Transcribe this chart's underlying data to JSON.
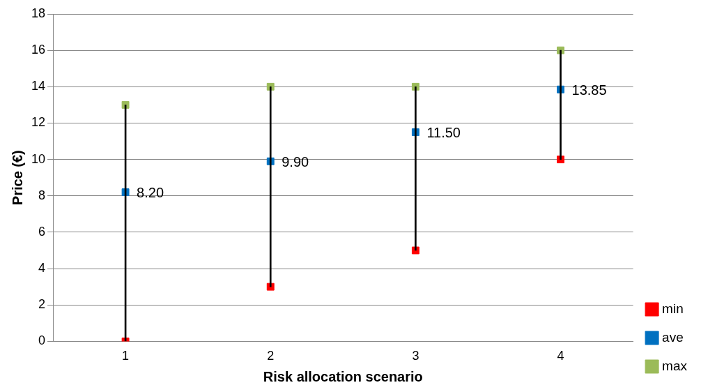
{
  "chart_data": {
    "type": "scatter",
    "xlabel": "Risk allocation scenario",
    "ylabel": "Price (€)",
    "categories": [
      "1",
      "2",
      "3",
      "4"
    ],
    "series": [
      {
        "type": "bar",
        "color": "#000000",
        "base": [
          0,
          3,
          5,
          10
        ],
        "values": [
          13,
          11,
          9,
          6
        ]
      },
      {
        "name": "min",
        "color": "#ff0000",
        "values": [
          0,
          3,
          5,
          10
        ]
      },
      {
        "name": "ave",
        "color": "#0070c0",
        "values": [
          8.2,
          9.9,
          11.5,
          13.85
        ],
        "value_labels": [
          "8.20",
          "9.90",
          "11.50",
          "13.85"
        ]
      },
      {
        "name": "max",
        "color": "#9bbb59",
        "values": [
          13,
          14,
          14,
          16
        ]
      }
    ],
    "ylim": [
      0,
      18
    ],
    "yticks": [
      0,
      2,
      4,
      6,
      8,
      10,
      12,
      14,
      16,
      18
    ],
    "grid": "y",
    "legend": "bottom right",
    "marker": "square"
  }
}
